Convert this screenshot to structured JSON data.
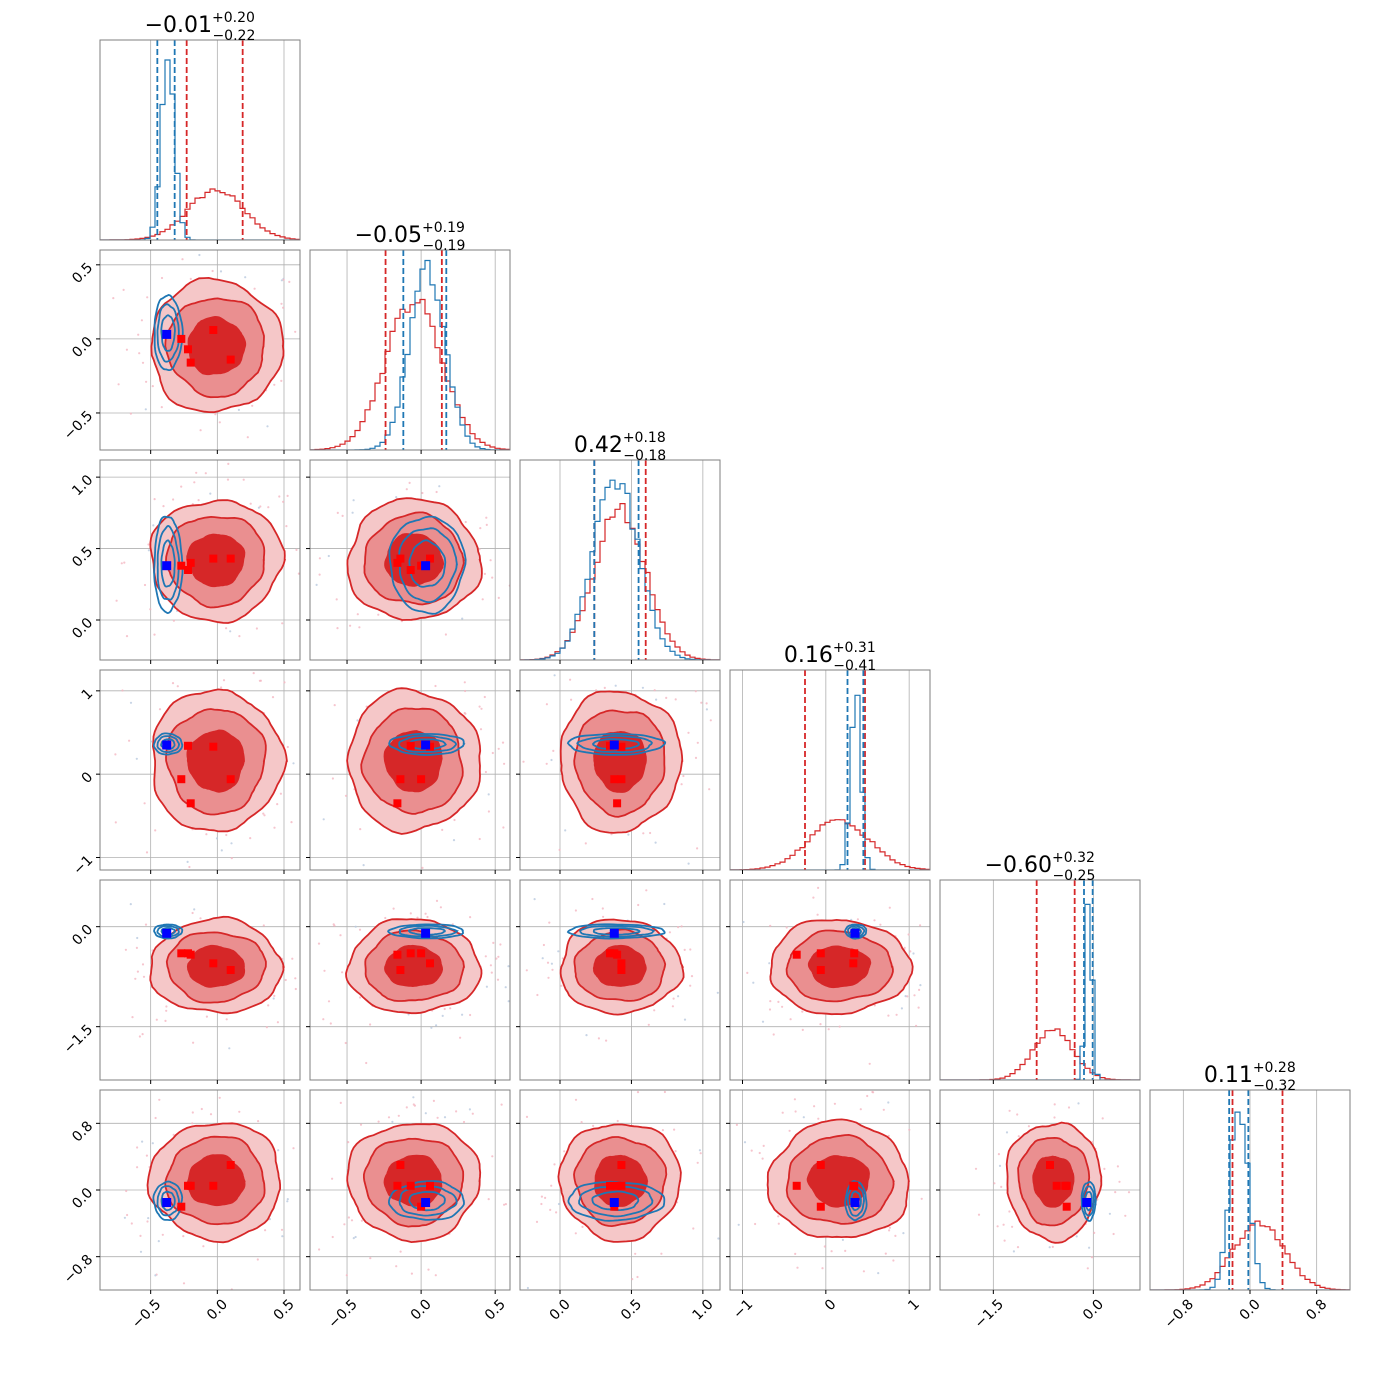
{
  "chart_data": {
    "type": "corner",
    "n_params": 6,
    "grid": true,
    "colors": {
      "red": "#d62728",
      "red_fill_dark": "#d62728",
      "red_fill_mid": "#ea8f90",
      "red_fill_light": "#f5c7c8",
      "blue": "#1f77b4",
      "truth_blue": "#0000ff",
      "truth_red": "#ff0000"
    },
    "titles": [
      {
        "value": "−0.01",
        "plus": "+0.20",
        "minus": "−0.22"
      },
      {
        "value": "−0.05",
        "plus": "+0.19",
        "minus": "−0.19"
      },
      {
        "value": "0.42",
        "plus": "+0.18",
        "minus": "−0.18"
      },
      {
        "value": "0.16",
        "plus": "+0.31",
        "minus": "−0.41"
      },
      {
        "value": "−0.60",
        "plus": "+0.32",
        "minus": "−0.25"
      },
      {
        "value": "0.11",
        "plus": "+0.28",
        "minus": "−0.32"
      }
    ],
    "ranges": [
      [
        -0.88,
        0.62
      ],
      [
        -0.75,
        0.6
      ],
      [
        -0.28,
        1.12
      ],
      [
        -1.15,
        1.25
      ],
      [
        -2.3,
        0.7
      ],
      [
        -1.2,
        1.2
      ]
    ],
    "x_ticks": [
      {
        "values": [
          -0.5,
          0.0,
          0.5
        ],
        "labels": [
          "−0.5",
          "0.0",
          "0.5"
        ]
      },
      {
        "values": [
          -0.5,
          0.0,
          0.5
        ],
        "labels": [
          "−0.5",
          "0.0",
          "0.5"
        ]
      },
      {
        "values": [
          0.0,
          0.5,
          1.0
        ],
        "labels": [
          "0.0",
          "0.5",
          "1.0"
        ]
      },
      {
        "values": [
          -1,
          0,
          1
        ],
        "labels": [
          "−1",
          "0",
          "1"
        ]
      },
      {
        "values": [
          -1.5,
          0.0
        ],
        "labels": [
          "−1.5",
          "0.0"
        ]
      },
      {
        "values": [
          -0.8,
          0.0,
          0.8
        ],
        "labels": [
          "−0.8",
          "0.0",
          "0.8"
        ]
      }
    ],
    "y_ticks": [
      null,
      {
        "values": [
          -0.5,
          0.0,
          0.5
        ],
        "labels": [
          "−0.5",
          "0.0",
          "0.5"
        ]
      },
      {
        "values": [
          0.0,
          0.5,
          1.0
        ],
        "labels": [
          "0.0",
          "0.5",
          "1.0"
        ]
      },
      {
        "values": [
          -1,
          0,
          1
        ],
        "labels": [
          "−1",
          "0",
          "1"
        ]
      },
      {
        "values": [
          -1.5,
          0.0
        ],
        "labels": [
          "−1.5",
          "0.0"
        ]
      },
      {
        "values": [
          -0.8,
          0.0,
          0.8
        ],
        "labels": [
          "−0.8",
          "0.0",
          "0.8"
        ]
      }
    ],
    "red_posterior": {
      "center": [
        -0.01,
        -0.05,
        0.42,
        0.16,
        -0.6,
        0.11
      ],
      "sigma": [
        0.21,
        0.19,
        0.18,
        0.36,
        0.3,
        0.3
      ],
      "quantiles": [
        [
          -0.23,
          0.19
        ],
        [
          -0.24,
          0.14
        ],
        [
          0.24,
          0.6
        ],
        [
          -0.25,
          0.47
        ],
        [
          -0.85,
          -0.28
        ],
        [
          -0.21,
          0.39
        ]
      ]
    },
    "blue_posterior": {
      "center": [
        -0.37,
        0.04,
        0.39,
        0.36,
        -0.07,
        -0.13
      ],
      "sigma": [
        0.05,
        0.12,
        0.16,
        0.06,
        0.05,
        0.11
      ],
      "quantiles": [
        [
          -0.45,
          -0.32
        ],
        [
          -0.12,
          0.17
        ],
        [
          0.24,
          0.55
        ],
        [
          0.26,
          0.45
        ],
        [
          -0.14,
          -0.01
        ],
        [
          -0.25,
          -0.02
        ]
      ]
    },
    "truth_blue": [
      -0.38,
      0.03,
      0.38,
      0.35,
      -0.1,
      -0.15
    ],
    "truth_red": [
      [
        -0.22,
        -0.07,
        0.35,
        0.34,
        -0.4,
        0.05
      ],
      [
        -0.2,
        -0.16,
        0.4,
        -0.35,
        -0.42,
        0.05
      ],
      [
        -0.03,
        0.06,
        0.43,
        0.33,
        -0.55,
        0.05
      ],
      [
        0.1,
        -0.14,
        0.43,
        -0.06,
        -0.65,
        0.3
      ],
      [
        -0.27,
        0.0,
        0.38,
        -0.06,
        -0.4,
        -0.2
      ]
    ]
  }
}
